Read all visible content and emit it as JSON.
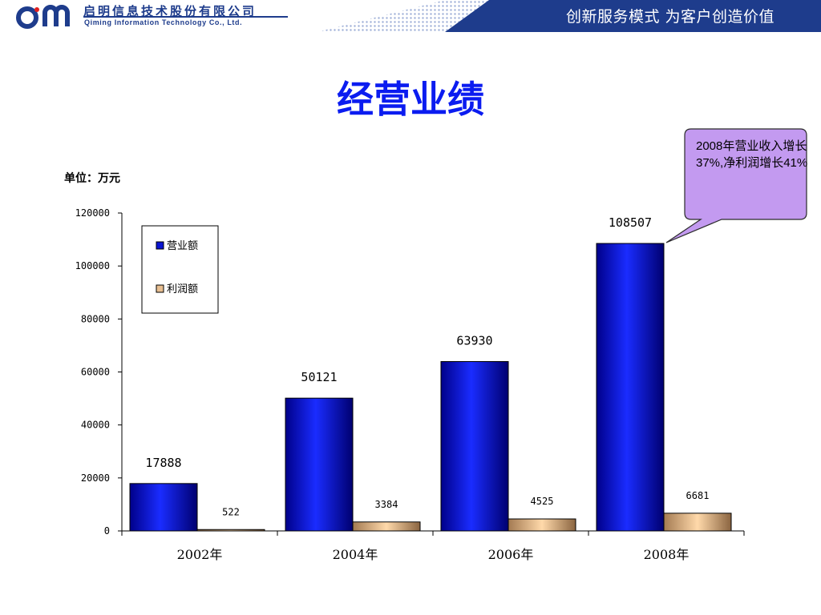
{
  "header": {
    "company_cn": "启明信息技术股份有限公司",
    "company_en": "Qiming Information Technology Co., Ltd.",
    "slogan": "创新服务模式  为客户创造价值",
    "brand_color": "#1e3c8c",
    "banner_color": "#1e3c8c"
  },
  "page": {
    "title": "经营业绩",
    "unit_label": "单位：万元"
  },
  "callout": {
    "text": "2008年营业收入增长37%,净利润增长41%",
    "fill": "#c39af0"
  },
  "chart_data": {
    "type": "bar",
    "categories": [
      "2002年",
      "2004年",
      "2006年",
      "2008年"
    ],
    "series": [
      {
        "name": "营业额",
        "values": [
          17888,
          50121,
          63930,
          108507
        ],
        "color": "#0a14d2"
      },
      {
        "name": "利润额",
        "values": [
          522,
          3384,
          4525,
          6681
        ],
        "color": "#e8bf92"
      }
    ],
    "ylim": [
      0,
      120000
    ],
    "yticks": [
      "0",
      "20000",
      "40000",
      "60000",
      "80000",
      "100000",
      "120000"
    ],
    "grid": false,
    "legend": "top-left"
  }
}
